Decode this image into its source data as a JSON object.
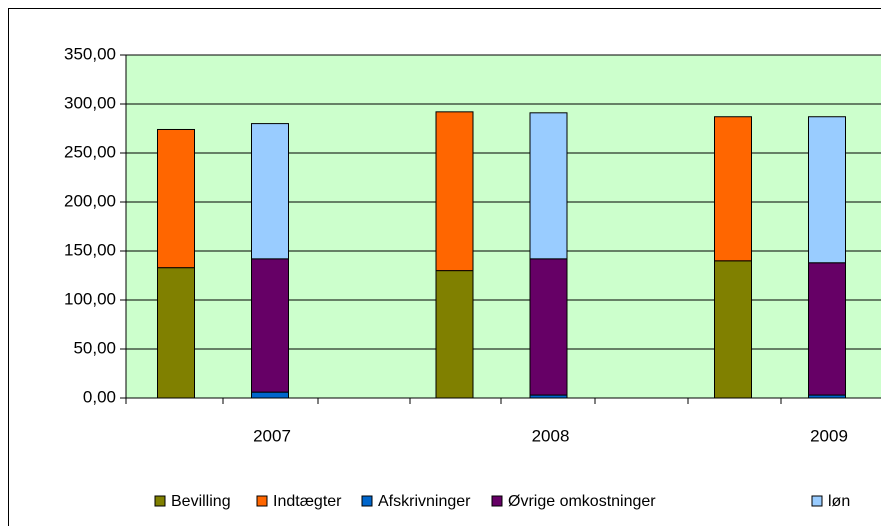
{
  "chart_data": {
    "type": "stacked_bar",
    "categories": [
      "2007",
      "2008",
      "2009"
    ],
    "series": [
      {
        "name": "Bevilling",
        "color": "#808000",
        "stack": 0,
        "values": [
          133,
          130,
          140
        ]
      },
      {
        "name": "Indtægter",
        "color": "#ff6600",
        "stack": 0,
        "values": [
          141,
          162,
          147
        ]
      },
      {
        "name": "Afskrivninger",
        "color": "#0066cc",
        "stack": 1,
        "values": [
          6,
          3,
          3
        ]
      },
      {
        "name": "Øvrige omkostninger",
        "color": "#660066",
        "stack": 1,
        "values": [
          136,
          139,
          135
        ]
      },
      {
        "name": "løn",
        "color": "#99ccff",
        "stack": 1,
        "values": [
          138,
          149,
          149
        ]
      }
    ],
    "ylim": [
      0,
      350
    ],
    "yticks": [
      {
        "value": 0,
        "label": "0,00"
      },
      {
        "value": 50,
        "label": "50,00"
      },
      {
        "value": 100,
        "label": "100,00"
      },
      {
        "value": 150,
        "label": "150,00"
      },
      {
        "value": 200,
        "label": "200,00"
      },
      {
        "value": 250,
        "label": "250,00"
      },
      {
        "value": 300,
        "label": "300,00"
      },
      {
        "value": 350,
        "label": "350,00"
      }
    ],
    "grid": true,
    "legend": "bottom",
    "plot_background": "#ccffcc"
  }
}
